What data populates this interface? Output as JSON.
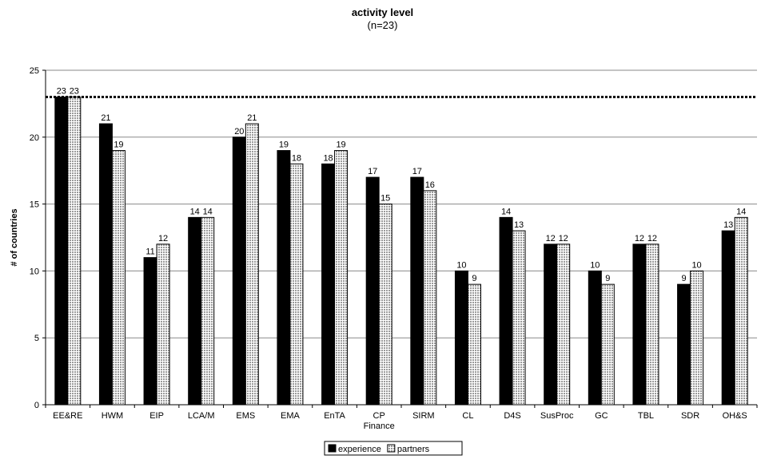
{
  "chart_data": {
    "type": "bar",
    "title": "activity level",
    "subtitle": "(n=23)",
    "ylabel": "# of countries",
    "xlabel": "",
    "ylim": [
      0,
      25
    ],
    "yticks": [
      0,
      5,
      10,
      15,
      20,
      25
    ],
    "grid": true,
    "reference_line": 23,
    "legend_position": "bottom-center",
    "categories": [
      "EE&RE",
      "HWM",
      "EIP",
      "LCA/M",
      "EMS",
      "EMA",
      "EnTA",
      "CP",
      "SIRM",
      "CL",
      "D4S",
      "SusProc",
      "GC",
      "TBL",
      "SDR",
      "OH&S"
    ],
    "category_sublabels": [
      "",
      "",
      "",
      "",
      "",
      "",
      "",
      "Finance",
      "",
      "",
      "",
      "",
      "",
      "",
      "",
      ""
    ],
    "series": [
      {
        "name": "experience",
        "color": "#000000",
        "values": [
          23,
          21,
          11,
          14,
          20,
          19,
          18,
          17,
          17,
          10,
          14,
          12,
          10,
          12,
          9,
          13
        ]
      },
      {
        "name": "partners",
        "color": "#d8d8d8",
        "values": [
          23,
          19,
          12,
          14,
          21,
          18,
          19,
          15,
          16,
          9,
          13,
          12,
          9,
          12,
          10,
          14
        ]
      }
    ]
  }
}
